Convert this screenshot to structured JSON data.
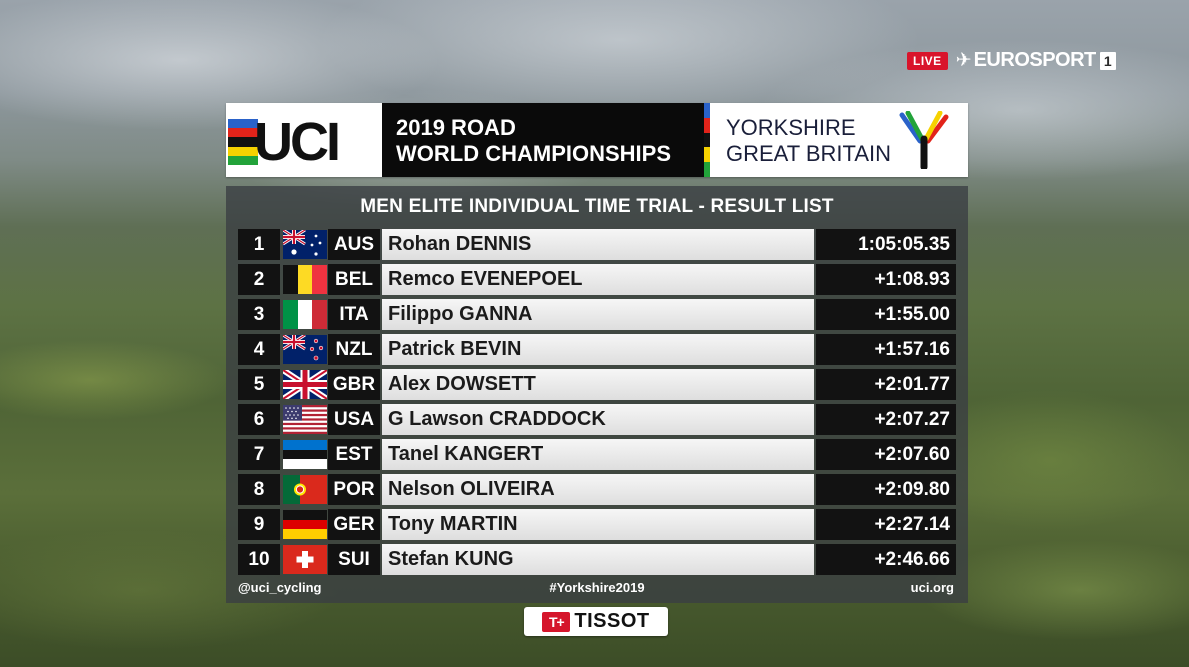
{
  "broadcaster": {
    "live_label": "LIVE",
    "mark": "✈",
    "name": "EUROSPORT",
    "channel": "1"
  },
  "header": {
    "org_logo_text": "UCI",
    "event_line1": "2019 ROAD",
    "event_line2": "WORLD CHAMPIONSHIPS",
    "host_line1": "YORKSHIRE",
    "host_line2": "GREAT BRITAIN",
    "rainbow_colors": [
      "#2a62c9",
      "#e2231a",
      "#111111",
      "#f6d200",
      "#22a33a"
    ]
  },
  "results": {
    "title": "MEN ELITE INDIVIDUAL TIME TRIAL - RESULT LIST",
    "rows": [
      {
        "rank": "1",
        "nation": "AUS",
        "flag": "aus-flag",
        "rider": "Rohan DENNIS",
        "time": "1:05:05.35"
      },
      {
        "rank": "2",
        "nation": "BEL",
        "flag": "bel-flag",
        "rider": "Remco EVENEPOEL",
        "time": "+1:08.93"
      },
      {
        "rank": "3",
        "nation": "ITA",
        "flag": "ita-flag",
        "rider": "Filippo GANNA",
        "time": "+1:55.00"
      },
      {
        "rank": "4",
        "nation": "NZL",
        "flag": "nzl-flag",
        "rider": "Patrick BEVIN",
        "time": "+1:57.16"
      },
      {
        "rank": "5",
        "nation": "GBR",
        "flag": "gbr-flag",
        "rider": "Alex DOWSETT",
        "time": "+2:01.77"
      },
      {
        "rank": "6",
        "nation": "USA",
        "flag": "usa-flag",
        "rider": "G Lawson CRADDOCK",
        "time": "+2:07.27"
      },
      {
        "rank": "7",
        "nation": "EST",
        "flag": "est-flag",
        "rider": "Tanel KANGERT",
        "time": "+2:07.60"
      },
      {
        "rank": "8",
        "nation": "POR",
        "flag": "por-flag",
        "rider": "Nelson OLIVEIRA",
        "time": "+2:09.80"
      },
      {
        "rank": "9",
        "nation": "GER",
        "flag": "ger-flag",
        "rider": "Tony MARTIN",
        "time": "+2:27.14"
      },
      {
        "rank": "10",
        "nation": "SUI",
        "flag": "sui-flag",
        "rider": "Stefan KUNG",
        "time": "+2:46.66"
      }
    ]
  },
  "footer": {
    "social": "@uci_cycling",
    "hashtag": "#Yorkshire2019",
    "website": "uci.org"
  },
  "sponsor": {
    "mark": "T+",
    "name": "TISSOT"
  }
}
